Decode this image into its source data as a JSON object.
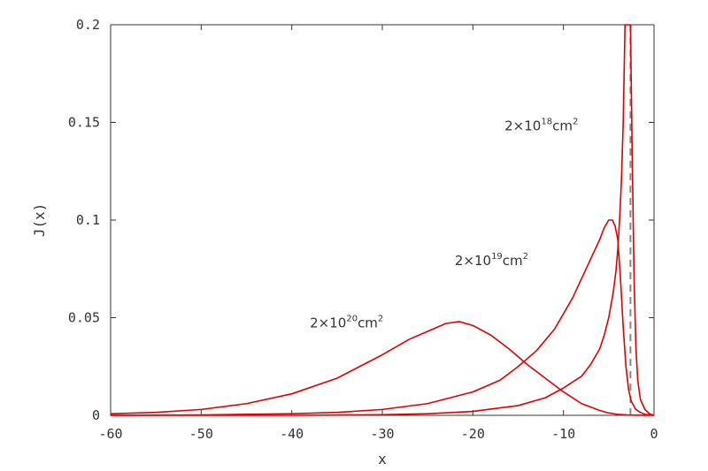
{
  "chart_data": {
    "type": "line",
    "title": "",
    "xlabel": "x",
    "ylabel": "J(x)",
    "xlim": [
      -60,
      0
    ],
    "ylim": [
      0,
      0.2
    ],
    "x_ticks": [
      "-60",
      "-50",
      "-40",
      "-30",
      "-20",
      "-10",
      "0"
    ],
    "y_ticks": [
      "0",
      "0.05",
      "0.1",
      "0.15",
      "0.2"
    ],
    "grid": false,
    "line_color": "#e00000",
    "series": [
      {
        "x": [
          -60,
          -55,
          -50,
          -45,
          -40,
          -35,
          -30,
          -27,
          -25,
          -23,
          -21.5,
          -20,
          -18,
          -16,
          -14,
          -12,
          -10,
          -8,
          -6,
          -5,
          -4,
          -3,
          -2,
          -1,
          0
        ],
        "y": [
          0.0008,
          0.0015,
          0.003,
          0.006,
          0.011,
          0.019,
          0.031,
          0.039,
          0.043,
          0.047,
          0.048,
          0.046,
          0.041,
          0.034,
          0.026,
          0.019,
          0.012,
          0.006,
          0.0025,
          0.0012,
          0.0005,
          0.0002,
          0.0001,
          3e-05,
          0.0
        ]
      },
      {
        "x": [
          -60,
          -50,
          -40,
          -35,
          -30,
          -25,
          -20,
          -17,
          -15,
          -13,
          -11,
          -10,
          -9,
          -8,
          -7,
          -6,
          -5.5,
          -5,
          -4.6,
          -4.3,
          -4,
          -3.7,
          -3.4,
          -3.1,
          -2.8,
          -2.5,
          -2,
          -1.5,
          -1,
          0
        ],
        "y": [
          0.0,
          0.0002,
          0.0008,
          0.0015,
          0.003,
          0.006,
          0.012,
          0.018,
          0.025,
          0.033,
          0.044,
          0.052,
          0.06,
          0.07,
          0.08,
          0.09,
          0.096,
          0.1,
          0.1,
          0.097,
          0.09,
          0.07,
          0.045,
          0.025,
          0.013,
          0.007,
          0.003,
          0.0015,
          0.0005,
          0.0
        ]
      },
      {
        "x": [
          -60,
          -40,
          -30,
          -25,
          -20,
          -15,
          -12,
          -10,
          -8,
          -7,
          -6,
          -5.5,
          -5,
          -4.5,
          -4.2,
          -4,
          -3.8,
          -3.6,
          -3.4,
          -3.2,
          -3,
          -2.8,
          -2.6,
          -2.4,
          -2.2,
          -2,
          -1.8,
          -1.5,
          -1,
          -0.5,
          0
        ],
        "y": [
          0.0,
          0.0,
          0.0003,
          0.0008,
          0.002,
          0.005,
          0.009,
          0.014,
          0.02,
          0.026,
          0.034,
          0.041,
          0.05,
          0.063,
          0.074,
          0.085,
          0.1,
          0.12,
          0.15,
          0.2,
          0.2,
          0.2,
          0.2,
          0.13,
          0.07,
          0.035,
          0.018,
          0.008,
          0.003,
          0.0008,
          0.0
        ]
      }
    ],
    "annotations": [
      {
        "base": "2×10",
        "exp": "20",
        "unit": "cm",
        "unit_exp": "2",
        "x": -38,
        "y": 0.045
      },
      {
        "base": "2×10",
        "exp": "19",
        "unit": "cm",
        "unit_exp": "2",
        "x": -22,
        "y": 0.077
      },
      {
        "base": "2×10",
        "exp": "18",
        "unit": "cm",
        "unit_exp": "2",
        "x": -16.5,
        "y": 0.146
      }
    ],
    "dashed_vertical": {
      "x": -2.6,
      "color": "#888888"
    }
  }
}
